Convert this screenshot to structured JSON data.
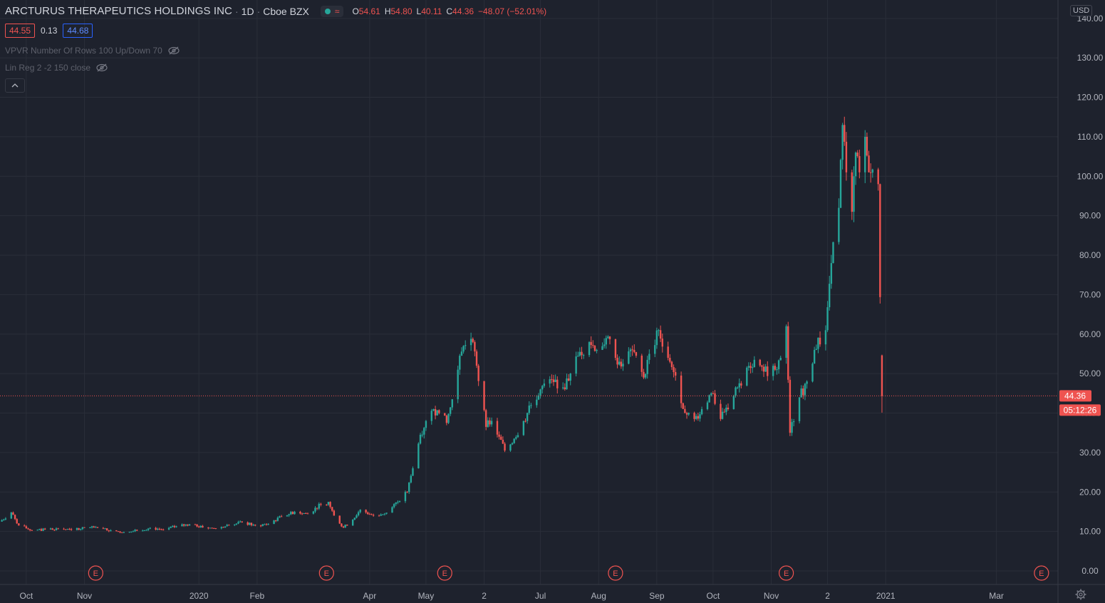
{
  "legend": {
    "title": "ARCTURUS THERAPEUTICS HOLDINGS INC",
    "interval": "1D",
    "exchange": "Cboe BZX",
    "open_label": "O",
    "open": "54.61",
    "high_label": "H",
    "high": "54.80",
    "low_label": "L",
    "low": "40.11",
    "close_label": "C",
    "close": "44.36",
    "change": "−48.07 (−52.01%)"
  },
  "quote": {
    "bid": "44.55",
    "spread": "0.13",
    "ask": "44.68"
  },
  "indicators": [
    {
      "label": "VPVR Number Of Rows 100 Up/Down 70"
    },
    {
      "label": "Lin Reg 2 -2 150 close"
    }
  ],
  "currency": "USD",
  "price_tag": {
    "price": "44.36",
    "countdown": "05:12:26"
  },
  "earnings_marker": "E",
  "colors": {
    "background": "#1e222d",
    "up": "#26a69a",
    "down": "#ef5350",
    "grid": "#2a2e39",
    "axis_text": "#b2b5be"
  },
  "chart_data": {
    "type": "candlestick",
    "symbol": "ARCTURUS THERAPEUTICS HOLDINGS INC",
    "y_ticks": [
      "140.00",
      "130.00",
      "120.00",
      "110.00",
      "100.00",
      "90.00",
      "80.00",
      "70.00",
      "60.00",
      "50.00",
      "40.00",
      "30.00",
      "20.00",
      "10.00",
      "0.00"
    ],
    "x_ticks": [
      {
        "label": "Oct",
        "date": "2019-10-01"
      },
      {
        "label": "Nov",
        "date": "2019-11-01"
      },
      {
        "label": "2020",
        "date": "2020-01-01"
      },
      {
        "label": "Feb",
        "date": "2020-02-01"
      },
      {
        "label": "Apr",
        "date": "2020-04-01"
      },
      {
        "label": "May",
        "date": "2020-05-01"
      },
      {
        "label": "2",
        "date": "2020-06-01"
      },
      {
        "label": "Jul",
        "date": "2020-07-01"
      },
      {
        "label": "Aug",
        "date": "2020-08-01"
      },
      {
        "label": "Sep",
        "date": "2020-09-01"
      },
      {
        "label": "Oct",
        "date": "2020-10-01"
      },
      {
        "label": "Nov",
        "date": "2020-11-01"
      },
      {
        "label": "2",
        "date": "2020-12-01"
      },
      {
        "label": "2021",
        "date": "2021-01-01"
      },
      {
        "label": "Mar",
        "date": "2021-03-01"
      }
    ],
    "x_range": [
      "2019-09-17",
      "2021-03-30"
    ],
    "ylim": [
      -2,
      145
    ],
    "earnings_dates": [
      "2019-11-07",
      "2020-03-09",
      "2020-05-11",
      "2020-08-10",
      "2020-11-09",
      "2021-03-25"
    ],
    "last_price": 44.36,
    "series": [
      {
        "date": "2019-09-17",
        "close": 12.5
      },
      {
        "date": "2019-09-23",
        "close": 14.8
      },
      {
        "date": "2019-09-27",
        "close": 11.5
      },
      {
        "date": "2019-10-04",
        "close": 10.3
      },
      {
        "date": "2019-10-11",
        "close": 10.5
      },
      {
        "date": "2019-10-18",
        "close": 10.7
      },
      {
        "date": "2019-10-25",
        "close": 10.4
      },
      {
        "date": "2019-11-01",
        "close": 11.0
      },
      {
        "date": "2019-11-08",
        "close": 10.9
      },
      {
        "date": "2019-11-15",
        "close": 10.3
      },
      {
        "date": "2019-11-22",
        "close": 9.8
      },
      {
        "date": "2019-11-29",
        "close": 10.2
      },
      {
        "date": "2019-12-06",
        "close": 10.9
      },
      {
        "date": "2019-12-13",
        "close": 10.5
      },
      {
        "date": "2019-12-20",
        "close": 11.3
      },
      {
        "date": "2019-12-27",
        "close": 11.8
      },
      {
        "date": "2020-01-03",
        "close": 11.0
      },
      {
        "date": "2020-01-10",
        "close": 10.8
      },
      {
        "date": "2020-01-17",
        "close": 11.6
      },
      {
        "date": "2020-01-24",
        "close": 12.3
      },
      {
        "date": "2020-01-31",
        "close": 11.5
      },
      {
        "date": "2020-02-07",
        "close": 11.9
      },
      {
        "date": "2020-02-14",
        "close": 13.8
      },
      {
        "date": "2020-02-21",
        "close": 15.0
      },
      {
        "date": "2020-02-28",
        "close": 14.5
      },
      {
        "date": "2020-03-06",
        "close": 16.8
      },
      {
        "date": "2020-03-10",
        "close": 17.5
      },
      {
        "date": "2020-03-13",
        "close": 14.0
      },
      {
        "date": "2020-03-18",
        "close": 11.0
      },
      {
        "date": "2020-03-23",
        "close": 13.0
      },
      {
        "date": "2020-03-27",
        "close": 15.5
      },
      {
        "date": "2020-04-03",
        "close": 14.0
      },
      {
        "date": "2020-04-09",
        "close": 14.5
      },
      {
        "date": "2020-04-16",
        "close": 17.5
      },
      {
        "date": "2020-04-21",
        "close": 20.0
      },
      {
        "date": "2020-04-24",
        "close": 26.0
      },
      {
        "date": "2020-04-28",
        "close": 34.5
      },
      {
        "date": "2020-05-01",
        "close": 38.0
      },
      {
        "date": "2020-05-05",
        "close": 41.0
      },
      {
        "date": "2020-05-08",
        "close": 40.0
      },
      {
        "date": "2020-05-12",
        "close": 37.5
      },
      {
        "date": "2020-05-15",
        "close": 43.5
      },
      {
        "date": "2020-05-18",
        "close": 51.0
      },
      {
        "date": "2020-05-21",
        "close": 57.0
      },
      {
        "date": "2020-05-26",
        "close": 58.0
      },
      {
        "date": "2020-05-28",
        "close": 52.0
      },
      {
        "date": "2020-06-02",
        "close": 36.5
      },
      {
        "date": "2020-06-05",
        "close": 38.0
      },
      {
        "date": "2020-06-09",
        "close": 34.0
      },
      {
        "date": "2020-06-12",
        "close": 30.5
      },
      {
        "date": "2020-06-17",
        "close": 33.5
      },
      {
        "date": "2020-06-22",
        "close": 38.0
      },
      {
        "date": "2020-06-26",
        "close": 42.0
      },
      {
        "date": "2020-07-01",
        "close": 46.0
      },
      {
        "date": "2020-07-07",
        "close": 48.5
      },
      {
        "date": "2020-07-13",
        "close": 46.5
      },
      {
        "date": "2020-07-17",
        "close": 50.0
      },
      {
        "date": "2020-07-22",
        "close": 55.5
      },
      {
        "date": "2020-07-27",
        "close": 58.0
      },
      {
        "date": "2020-07-31",
        "close": 56.0
      },
      {
        "date": "2020-08-05",
        "close": 59.0
      },
      {
        "date": "2020-08-10",
        "close": 54.0
      },
      {
        "date": "2020-08-14",
        "close": 52.5
      },
      {
        "date": "2020-08-19",
        "close": 56.0
      },
      {
        "date": "2020-08-25",
        "close": 49.0
      },
      {
        "date": "2020-08-28",
        "close": 55.0
      },
      {
        "date": "2020-09-02",
        "close": 61.0
      },
      {
        "date": "2020-09-08",
        "close": 53.0
      },
      {
        "date": "2020-09-11",
        "close": 49.5
      },
      {
        "date": "2020-09-16",
        "close": 40.0
      },
      {
        "date": "2020-09-21",
        "close": 38.5
      },
      {
        "date": "2020-09-25",
        "close": 41.0
      },
      {
        "date": "2020-09-30",
        "close": 45.0
      },
      {
        "date": "2020-10-05",
        "close": 38.5
      },
      {
        "date": "2020-10-09",
        "close": 41.0
      },
      {
        "date": "2020-10-14",
        "close": 46.5
      },
      {
        "date": "2020-10-19",
        "close": 51.5
      },
      {
        "date": "2020-10-23",
        "close": 53.5
      },
      {
        "date": "2020-10-28",
        "close": 50.5
      },
      {
        "date": "2020-11-03",
        "close": 51.0
      },
      {
        "date": "2020-11-06",
        "close": 54.0
      },
      {
        "date": "2020-11-09",
        "close": 62.0
      },
      {
        "date": "2020-11-11",
        "close": 35.0
      },
      {
        "date": "2020-11-16",
        "close": 44.0
      },
      {
        "date": "2020-11-20",
        "close": 48.0
      },
      {
        "date": "2020-11-24",
        "close": 56.0
      },
      {
        "date": "2020-11-30",
        "close": 61.0
      },
      {
        "date": "2020-12-03",
        "close": 78.0
      },
      {
        "date": "2020-12-07",
        "close": 92.0
      },
      {
        "date": "2020-12-09",
        "close": 113.0
      },
      {
        "date": "2020-12-11",
        "close": 101.0
      },
      {
        "date": "2020-12-14",
        "close": 91.0
      },
      {
        "date": "2020-12-16",
        "close": 106.0
      },
      {
        "date": "2020-12-18",
        "close": 101.0
      },
      {
        "date": "2020-12-21",
        "close": 110.0
      },
      {
        "date": "2020-12-23",
        "close": 101.0
      },
      {
        "date": "2020-12-28",
        "close": 98.0
      },
      {
        "date": "2020-12-30",
        "close": 44.36
      }
    ]
  }
}
